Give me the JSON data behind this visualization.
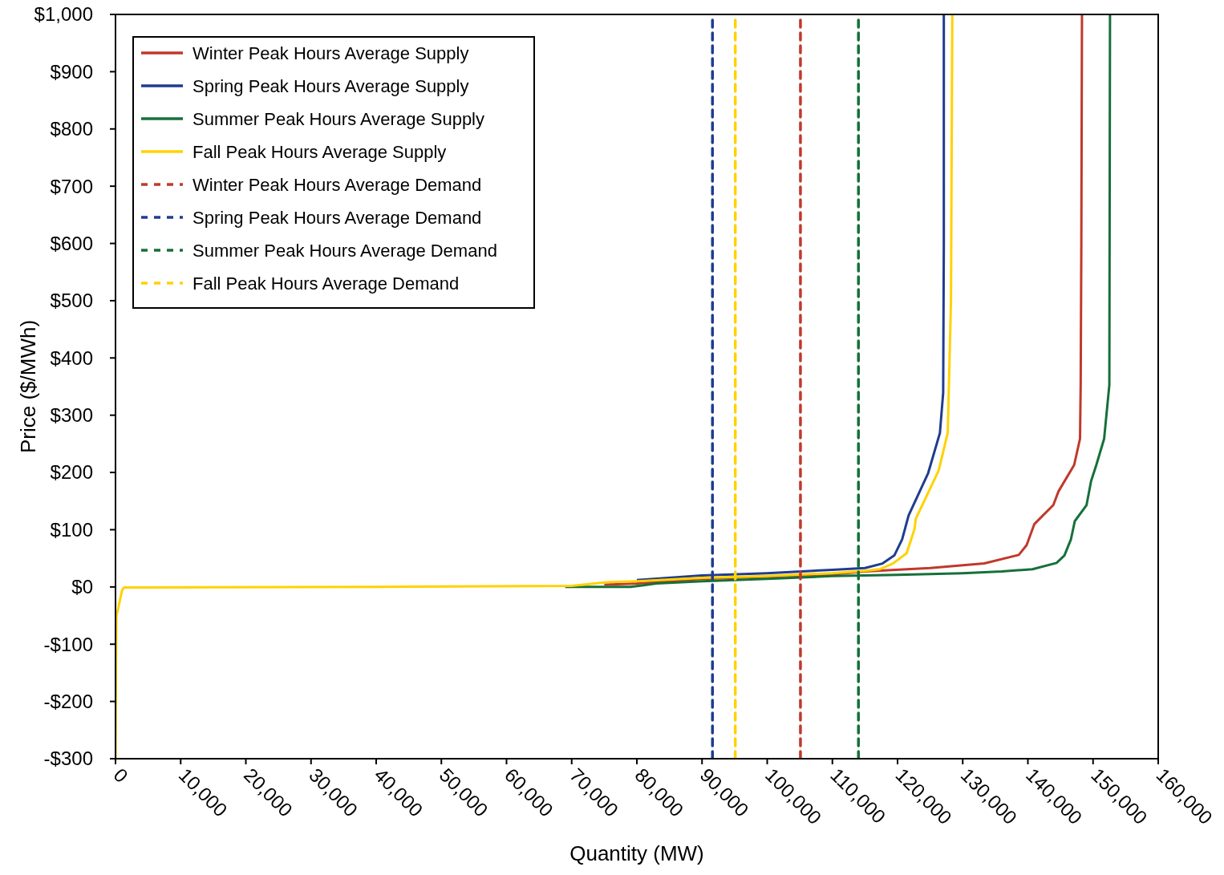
{
  "chart_data": {
    "type": "line",
    "xlabel": "Quantity (MW)",
    "ylabel": "Price ($/MWh)",
    "xlim": [
      0,
      160000
    ],
    "ylim": [
      -300,
      1000
    ],
    "xticks": [
      {
        "value": 0,
        "label": "0"
      },
      {
        "value": 10000,
        "label": "10,000"
      },
      {
        "value": 20000,
        "label": "20,000"
      },
      {
        "value": 30000,
        "label": "30,000"
      },
      {
        "value": 40000,
        "label": "40,000"
      },
      {
        "value": 50000,
        "label": "50,000"
      },
      {
        "value": 60000,
        "label": "60,000"
      },
      {
        "value": 70000,
        "label": "70,000"
      },
      {
        "value": 80000,
        "label": "80,000"
      },
      {
        "value": 90000,
        "label": "90,000"
      },
      {
        "value": 100000,
        "label": "100,000"
      },
      {
        "value": 110000,
        "label": "110,000"
      },
      {
        "value": 120000,
        "label": "120,000"
      },
      {
        "value": 130000,
        "label": "130,000"
      },
      {
        "value": 140000,
        "label": "140,000"
      },
      {
        "value": 150000,
        "label": "150,000"
      },
      {
        "value": 160000,
        "label": "160,000"
      }
    ],
    "yticks": [
      {
        "value": -300,
        "label": "-$300"
      },
      {
        "value": -200,
        "label": "-$200"
      },
      {
        "value": -100,
        "label": "-$100"
      },
      {
        "value": 0,
        "label": "$0"
      },
      {
        "value": 100,
        "label": "$100"
      },
      {
        "value": 200,
        "label": "$200"
      },
      {
        "value": 300,
        "label": "$300"
      },
      {
        "value": 400,
        "label": "$400"
      },
      {
        "value": 500,
        "label": "$500"
      },
      {
        "value": 600,
        "label": "$600"
      },
      {
        "value": 700,
        "label": "$700"
      },
      {
        "value": 800,
        "label": "$800"
      },
      {
        "value": 900,
        "label": "$900"
      },
      {
        "value": 1000,
        "label": "$1,000"
      }
    ],
    "grid": false,
    "legend": "top left",
    "series": [
      {
        "name": "Winter Peak Hours Average Supply",
        "color": "#c0392b",
        "line_style": "solid",
        "x": [
          75000,
          80000,
          90000,
          100000,
          110000,
          115000,
          125000,
          133300,
          138600,
          139800,
          141000,
          143900,
          144700,
          147100,
          148000,
          148100,
          148200,
          148300
        ],
        "values": [
          4,
          6,
          14,
          18,
          22,
          27,
          33,
          41,
          56,
          73,
          110,
          143,
          167,
          213,
          259,
          353,
          600,
          1000
        ]
      },
      {
        "name": "Spring Peak Hours Average Supply",
        "color": "#1f3d8f",
        "line_style": "solid",
        "x": [
          80000,
          90000,
          100000,
          110000,
          115000,
          117700,
          119500,
          120700,
          121700,
          124700,
          126500,
          127000,
          127100,
          127100
        ],
        "values": [
          12,
          20,
          24,
          30,
          33,
          41,
          55,
          83,
          125,
          199,
          269,
          339,
          600,
          1000
        ]
      },
      {
        "name": "Summer Peak Hours Average Supply",
        "color": "#16703a",
        "line_style": "solid",
        "x": [
          69000,
          79000,
          81000,
          83000,
          90000,
          100000,
          110000,
          120000,
          130000,
          136000,
          140700,
          144400,
          145600,
          146600,
          147200,
          149000,
          149700,
          150500,
          151700,
          152500,
          152600
        ],
        "values": [
          0,
          0,
          3,
          6,
          10,
          14,
          19,
          21,
          24,
          27,
          31,
          42,
          55,
          83,
          115,
          143,
          185,
          213,
          259,
          353,
          1000
        ]
      },
      {
        "name": "Fall Peak Hours Average Supply",
        "color": "#ffd200",
        "line_style": "solid",
        "x": [
          0,
          100,
          150,
          400,
          1000,
          1300,
          40000,
          70000,
          75000,
          80000,
          90000,
          100000,
          110000,
          115000,
          117300,
          119300,
          121400,
          122600,
          122800,
          126300,
          127700,
          128200,
          128400
        ],
        "values": [
          -300,
          -100,
          -50,
          -38,
          -6,
          -1,
          0,
          2,
          8,
          10,
          16,
          19,
          24,
          28,
          31,
          41,
          59,
          101,
          119,
          203,
          269,
          500,
          1000
        ]
      },
      {
        "name": "Winter Peak Hours Average Demand",
        "color": "#c0392b",
        "line_style": "dashed",
        "x": [
          105100,
          105100
        ],
        "values": [
          -300,
          1000
        ]
      },
      {
        "name": "Spring Peak Hours Average Demand",
        "color": "#1f3d8f",
        "line_style": "dashed",
        "x": [
          91600,
          91600
        ],
        "values": [
          -300,
          1000
        ]
      },
      {
        "name": "Summer Peak Hours Average Demand",
        "color": "#16703a",
        "line_style": "dashed",
        "x": [
          114000,
          114000
        ],
        "values": [
          -300,
          1000
        ]
      },
      {
        "name": "Fall Peak Hours Average Demand",
        "color": "#ffd200",
        "line_style": "dashed",
        "x": [
          95100,
          95100
        ],
        "values": [
          -300,
          1000
        ]
      }
    ]
  }
}
